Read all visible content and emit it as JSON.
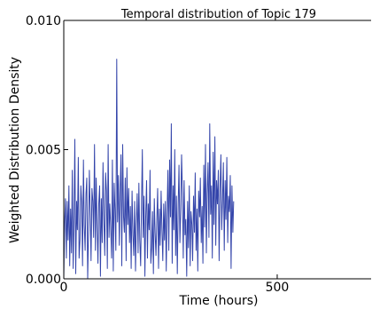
{
  "chart_data": {
    "type": "line",
    "title": "Temporal distribution of Topic 179",
    "xlabel": "Time (hours)",
    "ylabel": "Weighted Distribution Density",
    "xlim": [
      0,
      720
    ],
    "ylim": [
      0,
      0.01
    ],
    "x_ticks": [
      0,
      500
    ],
    "x_tick_labels": [
      "0",
      "500"
    ],
    "y_ticks": [
      0,
      0.005,
      0.01
    ],
    "y_tick_labels": [
      "0.000",
      "0.005",
      "0.010"
    ],
    "grid": false,
    "legend": "none",
    "series": [
      {
        "color": "#3344aa",
        "x_start": 0,
        "x_step": 2,
        "values": [
          0.0,
          0.0022,
          0.0031,
          0.0008,
          0.003,
          0.0015,
          0.0036,
          0.0005,
          0.0027,
          0.001,
          0.0042,
          0.0004,
          0.0024,
          0.0054,
          0.0002,
          0.003,
          0.0019,
          0.0047,
          0.0008,
          0.0015,
          0.0036,
          0.003,
          0.0005,
          0.0046,
          0.0021,
          0.0011,
          0.0033,
          0.0039,
          0.0,
          0.0019,
          0.0042,
          0.0025,
          0.0007,
          0.0035,
          0.003,
          0.0016,
          0.0052,
          0.0011,
          0.0039,
          0.0021,
          0.0006,
          0.0029,
          0.0036,
          0.0001,
          0.0031,
          0.0014,
          0.0045,
          0.0023,
          0.0009,
          0.0041,
          0.0034,
          0.0004,
          0.0052,
          0.0016,
          0.0029,
          0.002,
          0.0008,
          0.0046,
          0.0003,
          0.0037,
          0.0027,
          0.0011,
          0.0085,
          0.0022,
          0.004,
          0.0013,
          0.0033,
          0.0048,
          0.0005,
          0.0052,
          0.0024,
          0.0018,
          0.0039,
          0.0007,
          0.0043,
          0.0021,
          0.0035,
          0.0014,
          0.0028,
          0.0004,
          0.0034,
          0.0017,
          0.0009,
          0.003,
          0.0003,
          0.0021,
          0.0033,
          0.001,
          0.0037,
          0.0015,
          0.0005,
          0.0027,
          0.005,
          0.0016,
          0.0032,
          0.0001,
          0.0024,
          0.0038,
          0.0008,
          0.0029,
          0.0019,
          0.0042,
          0.0006,
          0.0012,
          0.0026,
          0.0002,
          0.0031,
          0.0018,
          0.0009,
          0.0023,
          0.0035,
          0.0004,
          0.0027,
          0.0013,
          0.0034,
          0.002,
          0.0007,
          0.0029,
          0.0015,
          0.003,
          0.0003,
          0.0025,
          0.0042,
          0.0011,
          0.0046,
          0.0024,
          0.006,
          0.0006,
          0.0036,
          0.0019,
          0.005,
          0.0009,
          0.0032,
          0.0002,
          0.0029,
          0.0044,
          0.0014,
          0.0027,
          0.0048,
          0.0033,
          0.0008,
          0.0038,
          0.0017,
          0.0023,
          0.0001,
          0.003,
          0.0012,
          0.0036,
          0.0005,
          0.0026,
          0.0021,
          0.0007,
          0.0032,
          0.0018,
          0.0041,
          0.0011,
          0.0027,
          0.0003,
          0.0034,
          0.0024,
          0.0039,
          0.0014,
          0.0028,
          0.0006,
          0.0044,
          0.002,
          0.0052,
          0.001,
          0.0033,
          0.0045,
          0.0016,
          0.006,
          0.0025,
          0.0036,
          0.0008,
          0.0049,
          0.0021,
          0.0055,
          0.0013,
          0.0038,
          0.0029,
          0.0042,
          0.0007,
          0.0035,
          0.0048,
          0.0019,
          0.0031,
          0.0045,
          0.0011,
          0.0038,
          0.0023,
          0.0047,
          0.0014,
          0.0032,
          0.0026,
          0.004,
          0.0004,
          0.0036,
          0.0018,
          0.003
        ]
      }
    ]
  }
}
